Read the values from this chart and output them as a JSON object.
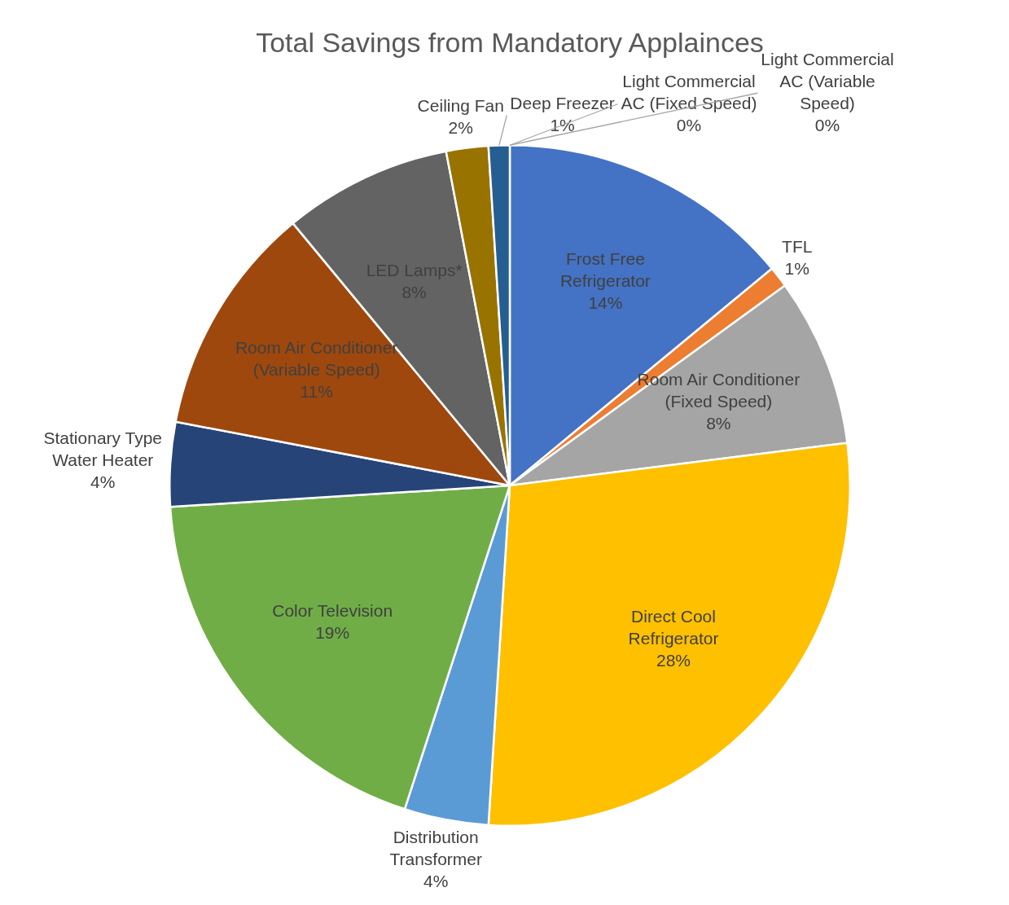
{
  "chart_data": {
    "type": "pie",
    "title": "Total Savings from Mandatory Applainces",
    "categories": [
      "Frost Free Refrigerator",
      "TFL",
      "Room Air Conditioner (Fixed Speed)",
      "Direct Cool Refrigerator",
      "Distribution Transformer",
      "Color Television",
      "Stationary Type Water Heater",
      "Room Air Conditioner (Variable Speed)",
      "LED Lamps*",
      "Ceiling Fan",
      "Deep Freezer",
      "Light Commercial AC (Fixed Speed)",
      "Light Commercial AC (Variable Speed)"
    ],
    "values": [
      14,
      1,
      8,
      28,
      4,
      19,
      4,
      11,
      8,
      2,
      1,
      0,
      0
    ],
    "colors": [
      "#4472c4",
      "#ed7d31",
      "#a5a5a5",
      "#ffc000",
      "#5b9bd5",
      "#70ad47",
      "#264478",
      "#9e480e",
      "#636363",
      "#997300",
      "#255e91",
      "#43682b",
      "#698ed0"
    ],
    "value_labels": [
      "14%",
      "1%",
      "8%",
      "28%",
      "4%",
      "19%",
      "4%",
      "11%",
      "8%",
      "2%",
      "1%",
      "0%",
      "0%"
    ],
    "legend": false
  }
}
